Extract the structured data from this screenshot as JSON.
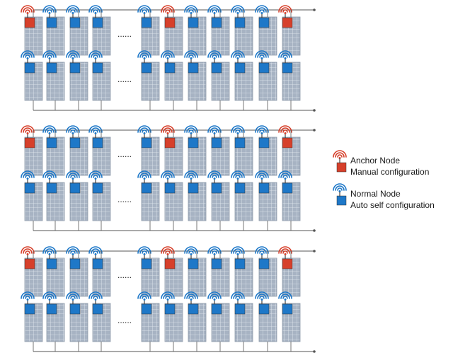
{
  "colors": {
    "anchor": "#d6402b",
    "normal": "#1e78c8",
    "panel": "#9aa7b8",
    "bus": "#555555"
  },
  "layout_structure": {
    "groups": 3,
    "rows_per_group": 2,
    "left_panels_per_row": 4,
    "right_panels_per_row": 7,
    "gap_marker": "......",
    "anchor_positions_top_row": [
      0,
      5,
      10
    ]
  },
  "legend": {
    "anchor": {
      "icon": "wifi-icon",
      "title": "Anchor Node",
      "subtitle": "Manual configuration"
    },
    "normal": {
      "icon": "wifi-icon",
      "title": "Normal Node",
      "subtitle": "Auto self configuration"
    }
  }
}
